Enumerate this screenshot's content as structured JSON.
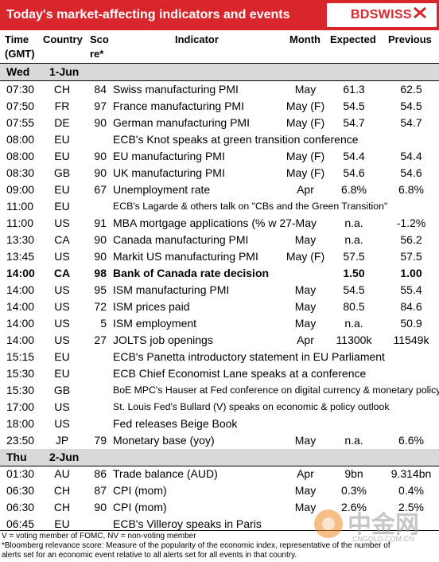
{
  "header": {
    "title": "Today's market-affecting indicators and events",
    "brand": "BDSWISS",
    "color": "#d9262c"
  },
  "columns": {
    "time": [
      "Time",
      "(GMT)"
    ],
    "country": "Country",
    "score": [
      "Sco",
      "re*"
    ],
    "indicator": "Indicator",
    "month": "Month",
    "expected": "Expected",
    "previous": "Previous"
  },
  "sections": [
    {
      "day": "Wed",
      "date": "1-Jun"
    },
    {
      "day": "Thu",
      "date": "2-Jun"
    }
  ],
  "rows_wed": [
    {
      "time": "07:30",
      "country": "CH",
      "score": "84",
      "indicator": "Swiss manufacturing PMI",
      "month": "May",
      "expected": "61.3",
      "previous": "62.5"
    },
    {
      "time": "07:50",
      "country": "FR",
      "score": "97",
      "indicator": "France manufacturing PMI",
      "month": "May (F)",
      "expected": "54.5",
      "previous": "54.5"
    },
    {
      "time": "07:55",
      "country": "DE",
      "score": "90",
      "indicator": "German manufacturing PMI",
      "month": "May (F)",
      "expected": "54.7",
      "previous": "54.7"
    },
    {
      "time": "08:00",
      "country": "EU",
      "score": "",
      "indicator": "ECB's Knot speaks at green transition conference",
      "month": "",
      "expected": "",
      "previous": ""
    },
    {
      "time": "08:00",
      "country": "EU",
      "score": "90",
      "indicator": "EU manufacturing PMI",
      "month": "May (F)",
      "expected": "54.4",
      "previous": "54.4"
    },
    {
      "time": "08:30",
      "country": "GB",
      "score": "90",
      "indicator": "UK manufacturing PMI",
      "month": "May (F)",
      "expected": "54.6",
      "previous": "54.6"
    },
    {
      "time": "09:00",
      "country": "EU",
      "score": "67",
      "indicator": "Unemployment rate",
      "month": "Apr",
      "expected": "6.8%",
      "previous": "6.8%"
    },
    {
      "time": "11:00",
      "country": "EU",
      "score": "",
      "indicator": "ECB's Lagarde & others talk on \"CBs and the Green Transition\"",
      "month": "",
      "expected": "",
      "previous": "",
      "small": true
    },
    {
      "time": "11:00",
      "country": "US",
      "score": "91",
      "indicator": "MBA mortgage applications (% w 27-May",
      "month": "",
      "expected": "n.a.",
      "previous": "-1.2%"
    },
    {
      "time": "13:30",
      "country": "CA",
      "score": "90",
      "indicator": "Canada manufacturing PMI",
      "month": "May",
      "expected": "n.a.",
      "previous": "56.2"
    },
    {
      "time": "13:45",
      "country": "US",
      "score": "90",
      "indicator": "Markit US manufacturing PMI",
      "month": "May (F)",
      "expected": "57.5",
      "previous": "57.5"
    },
    {
      "time": "14:00",
      "country": "CA",
      "score": "98",
      "indicator": "Bank of Canada rate decision",
      "month": "",
      "expected": "1.50",
      "previous": "1.00",
      "bold": true
    },
    {
      "time": "14:00",
      "country": "US",
      "score": "95",
      "indicator": "ISM manufacturing PMI",
      "month": "May",
      "expected": "54.5",
      "previous": "55.4"
    },
    {
      "time": "14:00",
      "country": "US",
      "score": "72",
      "indicator": "ISM prices paid",
      "month": "May",
      "expected": "80.5",
      "previous": "84.6"
    },
    {
      "time": "14:00",
      "country": "US",
      "score": "5",
      "indicator": "ISM employment",
      "month": "May",
      "expected": "n.a.",
      "previous": "50.9"
    },
    {
      "time": "14:00",
      "country": "US",
      "score": "27",
      "indicator": "JOLTS job openings",
      "month": "Apr",
      "expected": "11300k",
      "previous": "11549k"
    },
    {
      "time": "15:15",
      "country": "EU",
      "score": "",
      "indicator": "ECB's Panetta introductory statement in EU Parliament",
      "month": "",
      "expected": "",
      "previous": ""
    },
    {
      "time": "15:30",
      "country": "EU",
      "score": "",
      "indicator": "ECB Chief Economist Lane speaks at a conference",
      "month": "",
      "expected": "",
      "previous": ""
    },
    {
      "time": "15:30",
      "country": "GB",
      "score": "",
      "indicator": "BoE MPC's Hauser at Fed conference on digital currency & monetary policy",
      "month": "",
      "expected": "",
      "previous": "",
      "small": true
    },
    {
      "time": "17:00",
      "country": "US",
      "score": "",
      "indicator": "St. Louis Fed's Bullard (V) speaks on economic & policy outlook",
      "month": "",
      "expected": "",
      "previous": "",
      "small": true
    },
    {
      "time": "18:00",
      "country": "US",
      "score": "",
      "indicator": "Fed releases Beige Book",
      "month": "",
      "expected": "",
      "previous": ""
    },
    {
      "time": "23:50",
      "country": "JP",
      "score": "79",
      "indicator": "Monetary base (yoy)",
      "month": "May",
      "expected": "n.a.",
      "previous": "6.6%"
    }
  ],
  "rows_thu": [
    {
      "time": "01:30",
      "country": "AU",
      "score": "86",
      "indicator": "Trade balance (AUD)",
      "month": "Apr",
      "expected": "9bn",
      "previous": "9.314bn"
    },
    {
      "time": "06:30",
      "country": "CH",
      "score": "87",
      "indicator": "CPI (mom)",
      "month": "May",
      "expected": "0.3%",
      "previous": "0.4%"
    },
    {
      "time": "06:30",
      "country": "CH",
      "score": "90",
      "indicator": "CPI (mom)",
      "month": "May",
      "expected": "2.6%",
      "previous": "2.5%"
    },
    {
      "time": "06:45",
      "country": "EU",
      "score": "",
      "indicator": "ECB's Villeroy speaks in Paris",
      "month": "",
      "expected": "",
      "previous": ""
    }
  ],
  "footer": {
    "note1": "V = voting member of FOMC, NV = non-voting member",
    "note2": "*Bloomberg relevance score:  Measure of the popularity of the economic index, representative of the number of",
    "note3": "alerts set for an economic event relative to all alerts set for all events in that country."
  },
  "watermark": {
    "text": "中金网",
    "url": "CNGOLD.COM.CN"
  }
}
